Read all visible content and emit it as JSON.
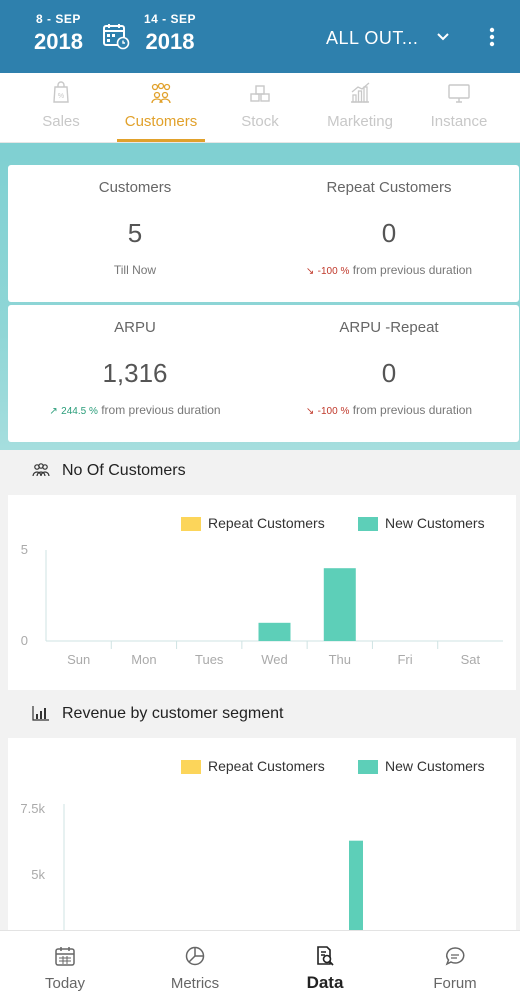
{
  "header": {
    "date_start": {
      "day_month": "8 - SEP",
      "year": "2018"
    },
    "date_end": {
      "day_month": "14 - SEP",
      "year": "2018"
    },
    "outlet_label": "ALL OUT...",
    "icons": [
      "calendar-icon",
      "chevron-down-icon",
      "more-vert-icon"
    ]
  },
  "tabs": [
    {
      "label": "Sales",
      "icon": "sales-tag-icon",
      "active": false
    },
    {
      "label": "Customers",
      "icon": "customers-group-icon",
      "active": true
    },
    {
      "label": "Stock",
      "icon": "stock-boxes-icon",
      "active": false
    },
    {
      "label": "Marketing",
      "icon": "marketing-chart-icon",
      "active": false
    },
    {
      "label": "Instance",
      "icon": "instance-monitor-icon",
      "active": false
    }
  ],
  "metrics": {
    "customers": {
      "title": "Customers",
      "value": "5",
      "sub": "Till Now"
    },
    "repeat_customers": {
      "title": "Repeat Customers",
      "value": "0",
      "change": "-100 %",
      "sub": "from previous duration"
    },
    "arpu": {
      "title": "ARPU",
      "value": "1,316",
      "change": "244.5 %",
      "sub": "from previous duration"
    },
    "arpu_repeat": {
      "title": "ARPU -Repeat",
      "value": "0",
      "change": "-100 %",
      "sub": "from previous duration"
    }
  },
  "sections": {
    "no_of_customers": {
      "title": "No Of Customers",
      "icon": "customers-group-icon"
    },
    "revenue_segment": {
      "title": "Revenue by customer segment",
      "icon": "bar-chart-icon"
    }
  },
  "colors": {
    "header": "#2e80ad",
    "accent": "#e1a12b",
    "repeat": "#fcd55a",
    "new": "#5dcfb8",
    "negative": "#c0392b",
    "positive": "#2a9d7a"
  },
  "chart_data": [
    {
      "type": "bar",
      "title": "No Of Customers",
      "categories": [
        "Sun",
        "Mon",
        "Tues",
        "Wed",
        "Thu",
        "Fri",
        "Sat"
      ],
      "series": [
        {
          "name": "Repeat Customers",
          "values": [
            0,
            0,
            0,
            0,
            0,
            0,
            0
          ]
        },
        {
          "name": "New Customers",
          "values": [
            0,
            0,
            0,
            1,
            4,
            0,
            0
          ]
        }
      ],
      "ylim": [
        0,
        5
      ],
      "yticks": [
        "0",
        "5"
      ],
      "legend": "top-right"
    },
    {
      "type": "bar",
      "title": "Revenue by customer segment",
      "series": [
        {
          "name": "Repeat Customers",
          "values": [
            0
          ]
        },
        {
          "name": "New Customers",
          "values": [
            6300
          ]
        }
      ],
      "yticks": [
        "5k",
        "7.5k"
      ],
      "legend": "top-right"
    }
  ],
  "bottom_nav": [
    {
      "label": "Today",
      "icon": "calendar-today-icon",
      "active": false
    },
    {
      "label": "Metrics",
      "icon": "pie-chart-icon",
      "active": false
    },
    {
      "label": "Data",
      "icon": "data-search-icon",
      "active": true
    },
    {
      "label": "Forum",
      "icon": "chat-bubble-icon",
      "active": false
    }
  ]
}
